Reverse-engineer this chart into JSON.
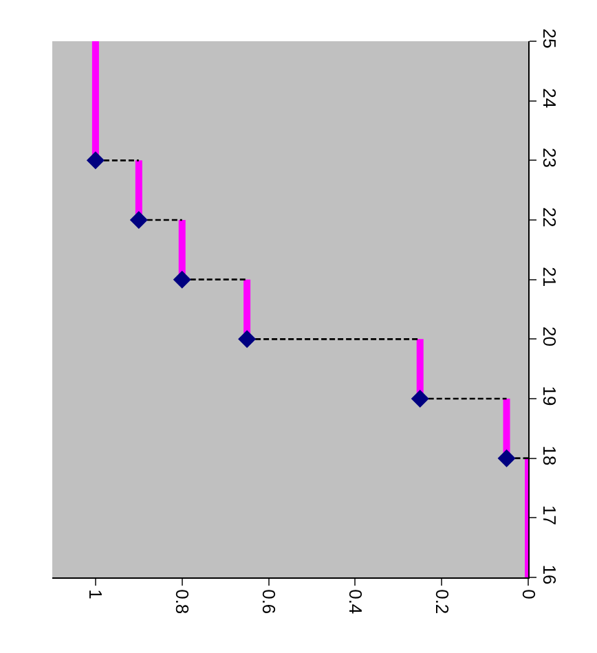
{
  "chart_data": {
    "type": "line",
    "xlim": [
      1.1,
      0
    ],
    "xticks": [
      1,
      0.8,
      0.6,
      0.4,
      0.2,
      0
    ],
    "ylim": [
      16,
      25
    ],
    "yticks": [
      16,
      17,
      18,
      19,
      20,
      21,
      22,
      23,
      24,
      25
    ],
    "grid": false,
    "series": [
      {
        "color": "#ff00ff",
        "line_style": "solid",
        "marker": "none",
        "x": [
          0,
          0,
          null,
          0.05,
          0.05,
          null,
          0.25,
          0.25,
          null,
          0.65,
          0.65,
          null,
          0.8,
          0.8,
          null,
          0.9,
          0.9,
          null,
          1,
          1
        ],
        "values": [
          16,
          18,
          null,
          18,
          19,
          null,
          19,
          20,
          null,
          20,
          21,
          null,
          21,
          22,
          null,
          22,
          23,
          null,
          23,
          25
        ]
      },
      {
        "color": "#000000",
        "line_style": "dashed",
        "marker": "none",
        "x": [
          0.05,
          0,
          null,
          0.25,
          0.05,
          null,
          0.65,
          0.25,
          null,
          0.8,
          0.65,
          null,
          0.9,
          0.8,
          null,
          1,
          0.9
        ],
        "values": [
          18,
          18,
          null,
          19,
          19,
          null,
          20,
          20,
          null,
          21,
          21,
          null,
          22,
          22,
          null,
          23,
          23
        ]
      },
      {
        "type": "scatter",
        "color": "#000080",
        "marker": "diamond",
        "x": [
          0.05,
          0.25,
          0.65,
          0.8,
          0.9,
          1
        ],
        "values": [
          18,
          19,
          20,
          21,
          22,
          23
        ]
      }
    ]
  }
}
